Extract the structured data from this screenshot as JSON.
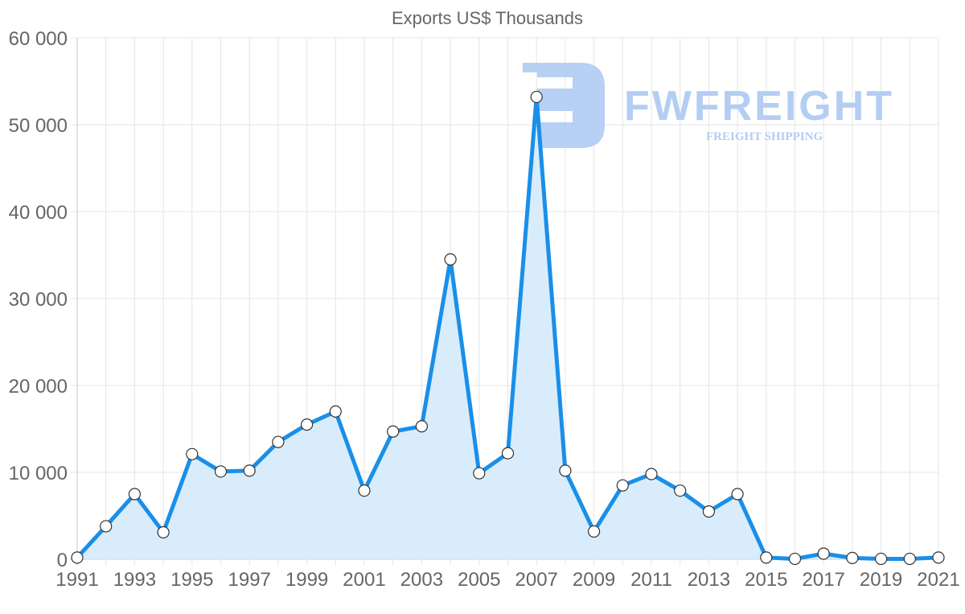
{
  "chart_data": {
    "type": "area",
    "title": "Exports US$ Thousands",
    "xlabel": "",
    "ylabel": "",
    "x": [
      1991,
      1992,
      1993,
      1994,
      1995,
      1996,
      1997,
      1998,
      1999,
      2000,
      2001,
      2002,
      2003,
      2004,
      2005,
      2006,
      2007,
      2008,
      2009,
      2010,
      2011,
      2012,
      2013,
      2014,
      2015,
      2016,
      2017,
      2018,
      2019,
      2020,
      2021
    ],
    "series": [
      {
        "name": "Exports US$ Thousands",
        "values": [
          200,
          3800,
          7500,
          3100,
          12100,
          10100,
          10200,
          13500,
          15500,
          17000,
          7900,
          14700,
          15300,
          34500,
          9900,
          12200,
          53200,
          10200,
          3200,
          8500,
          9800,
          7900,
          5500,
          7500,
          200,
          50,
          650,
          150,
          50,
          50,
          200
        ]
      }
    ],
    "ylim": [
      0,
      60000
    ],
    "y_ticks": [
      "0",
      "10 000",
      "20 000",
      "30 000",
      "40 000",
      "50 000",
      "60 000"
    ],
    "x_ticks": [
      "1991",
      "1993",
      "1995",
      "1997",
      "1999",
      "2001",
      "2003",
      "2005",
      "2007",
      "2009",
      "2011",
      "2013",
      "2015",
      "2017",
      "2019",
      "2021"
    ],
    "grid": true,
    "legend": "none",
    "colors": {
      "line": "#1a8fe8",
      "fill": "#d7ebfb",
      "point_fill": "#ffffff",
      "point_stroke": "#333333"
    }
  },
  "watermark": {
    "brand": "FWFREIGHT",
    "tagline": "FREIGHT SHIPPING",
    "color": "#b3cdf3"
  }
}
